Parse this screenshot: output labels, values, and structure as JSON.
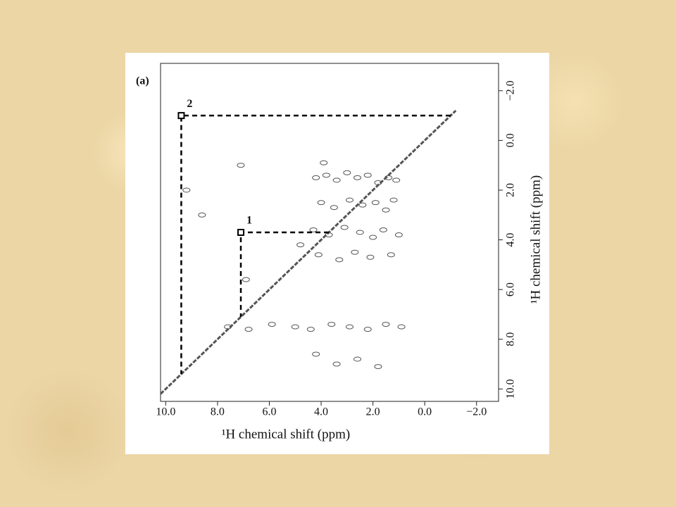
{
  "chart_data": {
    "type": "scatter",
    "title": "(a)",
    "x_label": "¹H chemical shift (ppm)",
    "y_label": "¹H chemical shift (ppm)",
    "xlim": [
      10.2,
      -2.85
    ],
    "ylim": [
      -3.1,
      10.5
    ],
    "xticks": [
      {
        "value": 10,
        "label": "10.0"
      },
      {
        "value": 8,
        "label": "8.0"
      },
      {
        "value": 6,
        "label": "6.0"
      },
      {
        "value": 4,
        "label": "4.0"
      },
      {
        "value": 2,
        "label": "2.0"
      },
      {
        "value": 0,
        "label": "0.0"
      },
      {
        "value": -2,
        "label": "−2.0"
      }
    ],
    "yticks": [
      {
        "value": -2,
        "label": "−2.0"
      },
      {
        "value": 0,
        "label": "0.0"
      },
      {
        "value": 2,
        "label": "2.0"
      },
      {
        "value": 4,
        "label": "4.0"
      },
      {
        "value": 6,
        "label": "6.0"
      },
      {
        "value": 8,
        "label": "8.0"
      },
      {
        "value": 10,
        "label": "10.0"
      }
    ],
    "color": "#555555",
    "x": [
      4.2,
      3.8,
      3.4,
      3.0,
      2.6,
      2.2,
      1.8,
      1.4,
      1.1,
      4.0,
      3.5,
      2.9,
      2.4,
      1.9,
      1.5,
      1.2,
      4.3,
      3.7,
      3.1,
      2.5,
      2.0,
      1.6,
      1.0,
      4.1,
      3.3,
      2.7,
      2.1,
      1.3,
      7.6,
      6.8,
      5.9,
      5.0,
      4.4,
      3.6,
      2.9,
      2.2,
      1.5,
      0.9,
      4.2,
      3.4,
      2.6,
      1.8,
      9.2,
      8.6,
      7.1,
      6.9,
      4.8,
      3.9
    ],
    "values": [
      1.5,
      1.4,
      1.6,
      1.3,
      1.5,
      1.4,
      1.7,
      1.5,
      1.6,
      2.5,
      2.7,
      2.4,
      2.6,
      2.5,
      2.8,
      2.4,
      3.6,
      3.8,
      3.5,
      3.7,
      3.9,
      3.6,
      3.8,
      4.6,
      4.8,
      4.5,
      4.7,
      4.6,
      7.5,
      7.6,
      7.4,
      7.5,
      7.6,
      7.4,
      7.5,
      7.6,
      7.4,
      7.5,
      8.6,
      9.0,
      8.8,
      9.1,
      2.0,
      3.0,
      1.0,
      5.6,
      4.2,
      0.9
    ],
    "diagonal": {
      "x": [
        10.2,
        -1.2
      ],
      "values": [
        10.2,
        -1.2
      ]
    },
    "annotations": [
      {
        "label": "2",
        "x": 9.4,
        "y": -1.0
      },
      {
        "label": "1",
        "x": 7.1,
        "y": 3.7
      }
    ]
  }
}
